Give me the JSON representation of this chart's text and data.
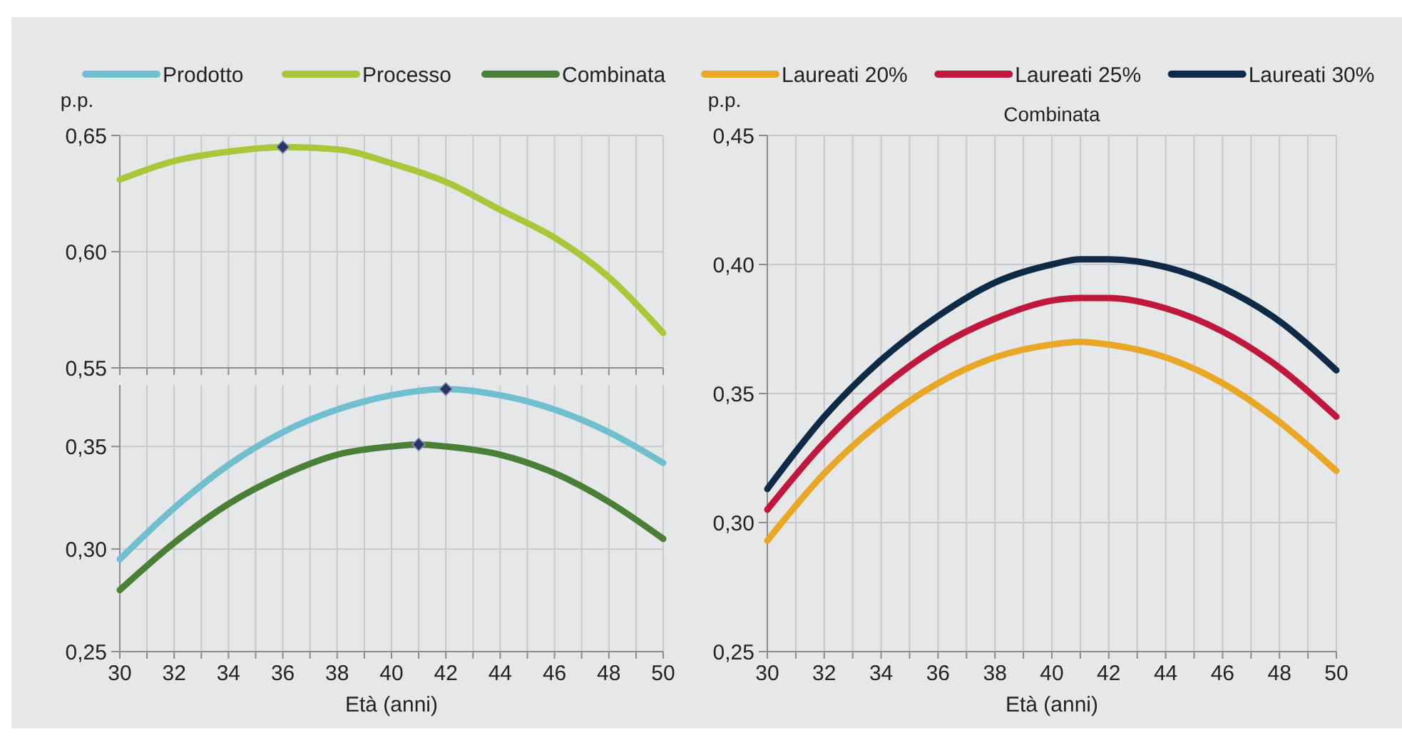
{
  "chart_data": [
    {
      "type": "line",
      "ylabel": "p.p.",
      "legend": "top",
      "grid": true,
      "tick_labels": "y",
      "xlim": [
        30,
        50
      ],
      "xticks": [
        30,
        {
          "value": 31,
          "label": null
        },
        32,
        {
          "value": 33,
          "label": null
        },
        34,
        {
          "value": 35,
          "label": null
        },
        36,
        {
          "value": 37,
          "label": null
        },
        38,
        {
          "value": 39,
          "label": null
        },
        40,
        {
          "value": 41,
          "label": null
        },
        42,
        {
          "value": 43,
          "label": null
        },
        44,
        {
          "value": 45,
          "label": null
        },
        46,
        {
          "value": 47,
          "label": null
        },
        48,
        {
          "value": 49,
          "label": null
        },
        50
      ],
      "ylim": [
        0.55,
        0.65
      ],
      "yticks": [
        {
          "value": 0.55,
          "label": "0,55"
        },
        {
          "value": 0.6,
          "label": "0,60"
        },
        {
          "value": 0.65,
          "label": "0,65"
        }
      ],
      "x": [
        30,
        32,
        34,
        36,
        38,
        40,
        42,
        44,
        46,
        48,
        50
      ],
      "series": [
        {
          "name": "Processo",
          "color": "#a8c83a",
          "values": [
            0.631,
            0.639,
            0.643,
            0.645,
            0.644,
            0.638,
            0.63,
            0.618,
            0.606,
            0.589,
            0.565
          ]
        },
        {
          "type": "scatter",
          "marker": "diamond",
          "color": "#2b3566",
          "x": [
            36
          ],
          "values": [
            0.645
          ]
        }
      ]
    },
    {
      "type": "line",
      "xlabel": "Età (anni)",
      "legend": "top",
      "grid": true,
      "xlim": [
        30,
        50
      ],
      "xticks": [
        30,
        {
          "value": 31,
          "label": null
        },
        32,
        {
          "value": 33,
          "label": null
        },
        34,
        {
          "value": 35,
          "label": null
        },
        36,
        {
          "value": 37,
          "label": null
        },
        38,
        {
          "value": 39,
          "label": null
        },
        40,
        {
          "value": 41,
          "label": null
        },
        42,
        {
          "value": 43,
          "label": null
        },
        44,
        {
          "value": 45,
          "label": null
        },
        46,
        {
          "value": 47,
          "label": null
        },
        48,
        {
          "value": 49,
          "label": null
        },
        50
      ],
      "ylim": [
        0.25,
        0.38
      ],
      "yticks": [
        {
          "value": 0.25,
          "label": "0,25"
        },
        {
          "value": 0.3,
          "label": "0,30"
        },
        {
          "value": 0.35,
          "label": "0,35"
        }
      ],
      "x": [
        30,
        32,
        34,
        36,
        38,
        40,
        42,
        44,
        46,
        48,
        50
      ],
      "series": [
        {
          "name": "Prodotto",
          "color": "#6fbfce",
          "values": [
            0.295,
            0.32,
            0.341,
            0.357,
            0.368,
            0.375,
            0.378,
            0.375,
            0.368,
            0.357,
            0.342
          ]
        },
        {
          "name": "Combinata",
          "color": "#4a8035",
          "x": [
            30,
            32,
            34,
            36,
            38,
            40,
            41,
            42,
            44,
            46,
            48,
            50
          ],
          "values": [
            0.28,
            0.303,
            0.322,
            0.336,
            0.346,
            0.35,
            0.351,
            0.35,
            0.346,
            0.337,
            0.323,
            0.305
          ]
        },
        {
          "type": "scatter",
          "marker": "diamond",
          "color": "#2b3566",
          "x": [
            42,
            41
          ],
          "values": [
            0.378,
            0.351
          ]
        }
      ]
    },
    {
      "type": "line",
      "title": "Combinata",
      "ylabel": "p.p.",
      "xlabel": "Età (anni)",
      "legend": "top",
      "grid": true,
      "xlim": [
        30,
        50
      ],
      "xticks": [
        30,
        {
          "value": 31,
          "label": null
        },
        32,
        {
          "value": 33,
          "label": null
        },
        34,
        {
          "value": 35,
          "label": null
        },
        36,
        {
          "value": 37,
          "label": null
        },
        38,
        {
          "value": 39,
          "label": null
        },
        40,
        {
          "value": 41,
          "label": null
        },
        42,
        {
          "value": 43,
          "label": null
        },
        44,
        {
          "value": 45,
          "label": null
        },
        46,
        {
          "value": 47,
          "label": null
        },
        48,
        {
          "value": 49,
          "label": null
        },
        50
      ],
      "ylim": [
        0.25,
        0.45
      ],
      "yticks": [
        {
          "value": 0.25,
          "label": "0,25"
        },
        {
          "value": 0.3,
          "label": "0,30"
        },
        {
          "value": 0.35,
          "label": "0,35"
        },
        {
          "value": 0.4,
          "label": "0,40"
        },
        {
          "value": 0.45,
          "label": "0,45"
        }
      ],
      "x": [
        30,
        32,
        34,
        36,
        38,
        40,
        41,
        42,
        44,
        46,
        48,
        50
      ],
      "series": [
        {
          "name": "Laureati 20%",
          "color": "#e8a825",
          "values": [
            0.293,
            0.319,
            0.339,
            0.354,
            0.364,
            0.369,
            0.37,
            0.369,
            0.364,
            0.354,
            0.339,
            0.32
          ]
        },
        {
          "name": "Laureati 25%",
          "color": "#c0183c",
          "values": [
            0.305,
            0.331,
            0.352,
            0.368,
            0.379,
            0.386,
            0.387,
            0.387,
            0.383,
            0.374,
            0.36,
            0.341
          ]
        },
        {
          "name": "Laureati 30%",
          "color": "#0e2a47",
          "values": [
            0.313,
            0.341,
            0.363,
            0.38,
            0.393,
            0.4,
            0.402,
            0.402,
            0.399,
            0.391,
            0.378,
            0.359
          ]
        }
      ]
    }
  ]
}
